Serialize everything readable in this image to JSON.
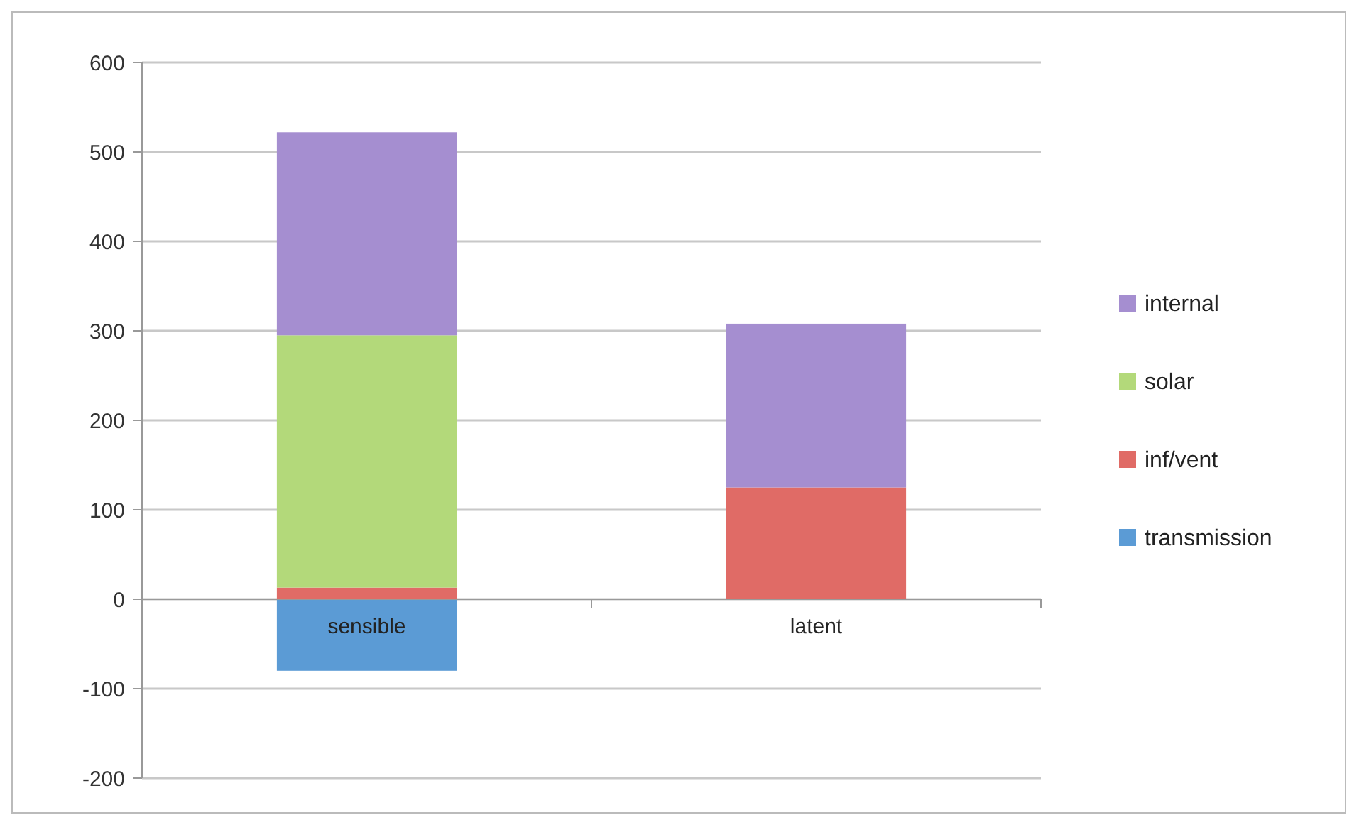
{
  "chart_data": {
    "type": "bar",
    "stacked": true,
    "categories": [
      "sensible",
      "latent"
    ],
    "series": [
      {
        "name": "transmission",
        "color": "#5b9bd5",
        "values": [
          -80,
          null
        ]
      },
      {
        "name": "inf/vent",
        "color": "#e06b66",
        "values": [
          13,
          125
        ]
      },
      {
        "name": "solar",
        "color": "#b3d97a",
        "values": [
          282,
          null
        ]
      },
      {
        "name": "internal",
        "color": "#a58ed0",
        "values": [
          227,
          183
        ]
      }
    ],
    "ylim": [
      -200,
      600
    ],
    "yticks": [
      -200,
      -100,
      0,
      100,
      200,
      300,
      400,
      500,
      600
    ],
    "grid": "y",
    "legend": "right"
  }
}
